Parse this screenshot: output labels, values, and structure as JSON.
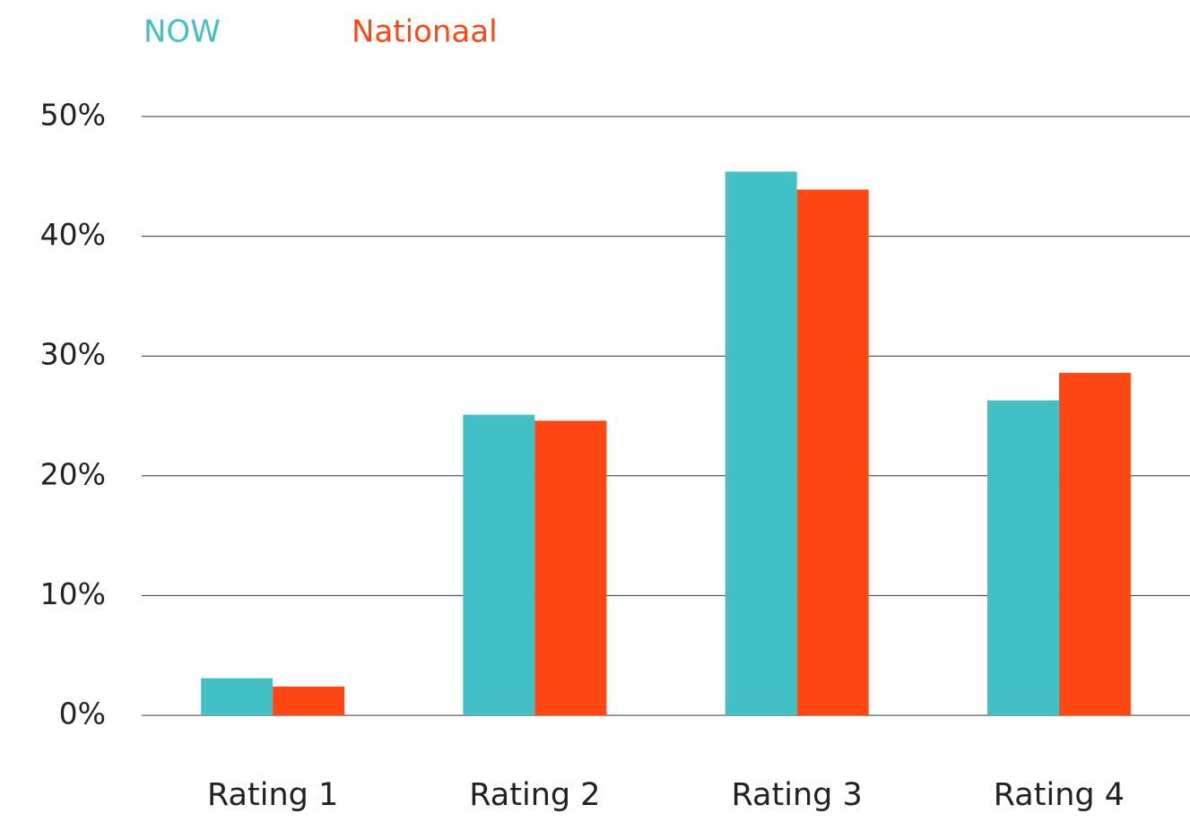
{
  "chart_data": {
    "type": "bar",
    "categories": [
      "Rating 1",
      "Rating 2",
      "Rating 3",
      "Rating 4"
    ],
    "series": [
      {
        "name": "NOW",
        "color": "#42c0c6",
        "values": [
          3.1,
          25.1,
          45.4,
          26.3
        ]
      },
      {
        "name": "Nationaal",
        "color": "#ff4713",
        "values": [
          2.4,
          24.6,
          43.9,
          28.6
        ]
      }
    ],
    "ylim": [
      0,
      50
    ],
    "yticks": [
      {
        "value": 0,
        "label": "0%"
      },
      {
        "value": 10,
        "label": "10%"
      },
      {
        "value": 20,
        "label": "20%"
      },
      {
        "value": 30,
        "label": "30%"
      },
      {
        "value": 40,
        "label": "40%"
      },
      {
        "value": 50,
        "label": "50%"
      }
    ],
    "grid": true,
    "legend": "top-left"
  }
}
